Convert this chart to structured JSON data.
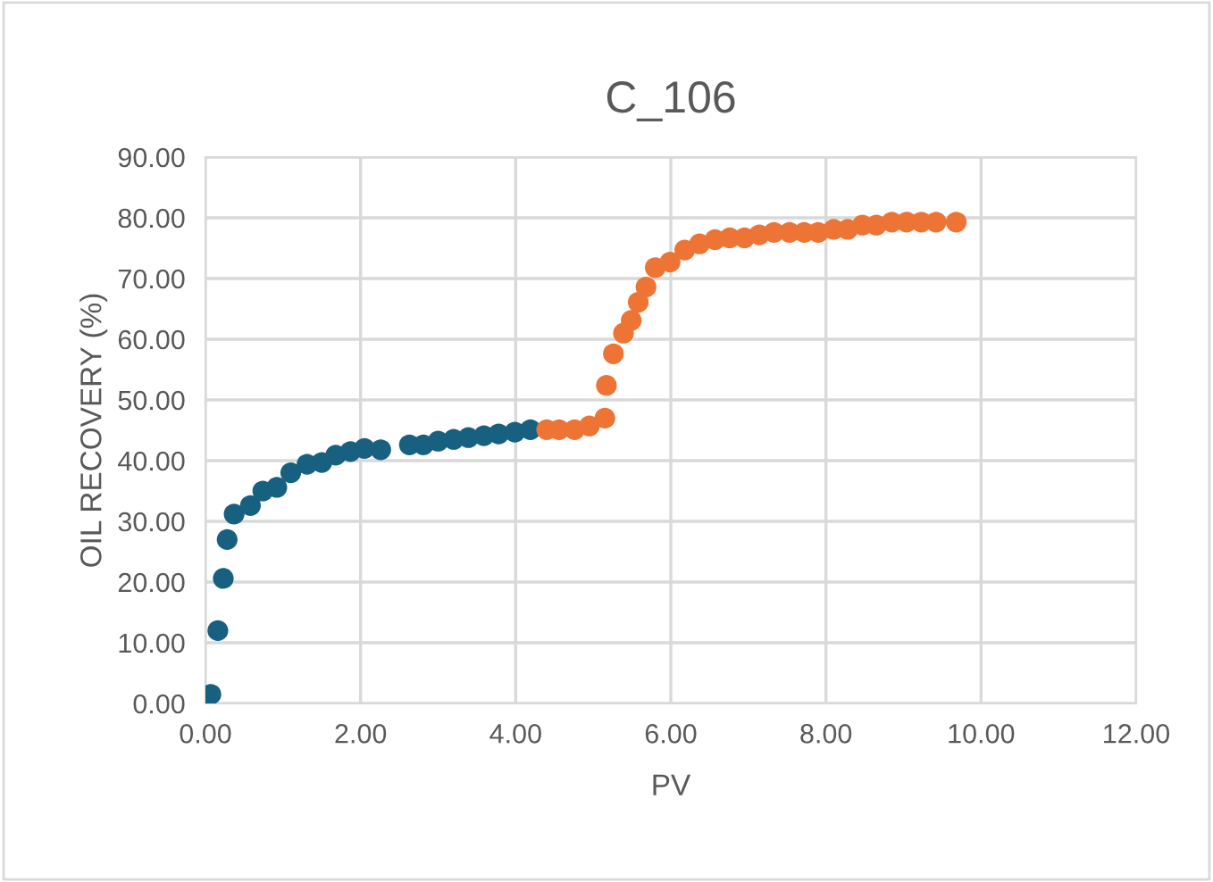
{
  "chart_data": {
    "type": "scatter",
    "title": "C_106",
    "xlabel": "PV",
    "ylabel": "OIL RECOVERY (%)",
    "series": [
      {
        "color": "#17607f",
        "x": [
          0.07,
          0.16,
          0.23,
          0.28,
          0.37,
          0.58,
          0.74,
          0.92,
          1.1,
          1.31,
          1.5,
          1.68,
          1.87,
          2.05,
          2.26,
          2.63,
          2.81,
          3.0,
          3.2,
          3.39,
          3.59,
          3.78,
          3.99,
          4.19
        ],
        "values": [
          1.5,
          12,
          20.6,
          27,
          31.2,
          32.6,
          35,
          35.6,
          38,
          39.4,
          39.7,
          40.9,
          41.5,
          42,
          41.8,
          42.6,
          42.6,
          43.2,
          43.5,
          43.8,
          44.1,
          44.4,
          44.7,
          45.1
        ]
      },
      {
        "color": "#ed7435",
        "x": [
          4.4,
          4.56,
          4.76,
          4.95,
          5.15,
          5.17,
          5.26,
          5.39,
          5.49,
          5.58,
          5.68,
          5.8,
          5.99,
          6.18,
          6.37,
          6.57,
          6.76,
          6.95,
          7.14,
          7.33,
          7.53,
          7.72,
          7.9,
          8.1,
          8.28,
          8.47,
          8.65,
          8.85,
          9.04,
          9.23,
          9.42,
          9.68
        ],
        "values": [
          45.1,
          45.1,
          45.1,
          45.7,
          47,
          52.4,
          57.6,
          61,
          63.1,
          66.1,
          68.6,
          71.8,
          72.7,
          74.7,
          75.7,
          76.4,
          76.7,
          76.7,
          77.2,
          77.6,
          77.6,
          77.6,
          77.6,
          78.1,
          78.1,
          78.8,
          78.8,
          79.3,
          79.3,
          79.3,
          79.3,
          79.3
        ]
      }
    ],
    "xlim": [
      0,
      12
    ],
    "xticks": [
      {
        "value": 0,
        "label": "0.00"
      },
      {
        "value": 2,
        "label": "2.00"
      },
      {
        "value": 4,
        "label": "4.00"
      },
      {
        "value": 6,
        "label": "6.00"
      },
      {
        "value": 8,
        "label": "8.00"
      },
      {
        "value": 10,
        "label": "10.00"
      },
      {
        "value": 12,
        "label": "12.00"
      }
    ],
    "ylim": [
      0,
      90
    ],
    "yticks": [
      {
        "value": 0,
        "label": "0.00"
      },
      {
        "value": 10,
        "label": "10.00"
      },
      {
        "value": 20,
        "label": "20.00"
      },
      {
        "value": 30,
        "label": "30.00"
      },
      {
        "value": 40,
        "label": "40.00"
      },
      {
        "value": 50,
        "label": "50.00"
      },
      {
        "value": 60,
        "label": "60.00"
      },
      {
        "value": 70,
        "label": "70.00"
      },
      {
        "value": 80,
        "label": "80.00"
      },
      {
        "value": 90,
        "label": "90.00"
      }
    ],
    "grid": true,
    "marker": "circle"
  }
}
